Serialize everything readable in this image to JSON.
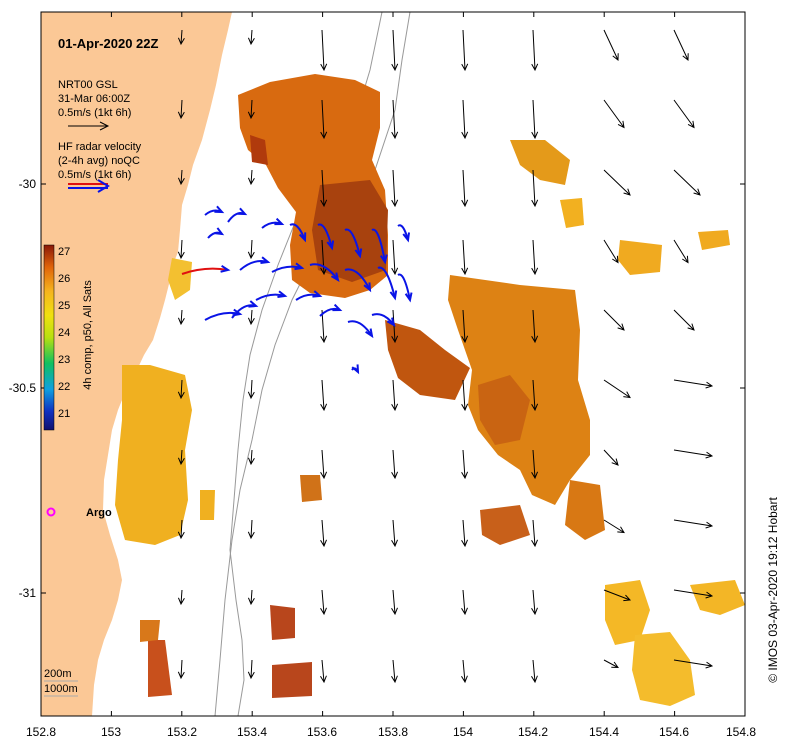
{
  "title": "01-Apr-2020 22Z",
  "model_legend": {
    "line1": "NRT00 GSL",
    "line2": "31-Mar 06:00Z",
    "line3": "0.5m/s (1kt 6h)"
  },
  "radar_legend": {
    "line1": "HF radar velocity",
    "line2": "(2-4h avg) noQC",
    "line3": "0.5m/s (1kt 6h)"
  },
  "colorbar": {
    "label": "4h comp, p50, All Sats",
    "ticks": [
      "27",
      "26",
      "25",
      "24",
      "23",
      "22",
      "21"
    ]
  },
  "argo_label": "Argo",
  "depth_legend": {
    "line1": "200m",
    "line2": "1000m"
  },
  "credit": "© IMOS 03-Apr-2020 19:12 Hobart",
  "axes": {
    "x_ticks": [
      "152.8",
      "153",
      "153.2",
      "153.4",
      "153.6",
      "153.8",
      "154",
      "154.2",
      "154.4",
      "154.6",
      "154.8"
    ],
    "y_ticks": [
      "-30",
      "-30.5",
      "-31"
    ]
  },
  "colors": {
    "land": "#fbc896",
    "sst_hot": "#a0280a",
    "sst_mid": "#e0780a",
    "sst_warm": "#f5b41e",
    "model_arrow": "#000000",
    "radar_arrow": "#0a14e6",
    "argo": "#ff00ff"
  }
}
